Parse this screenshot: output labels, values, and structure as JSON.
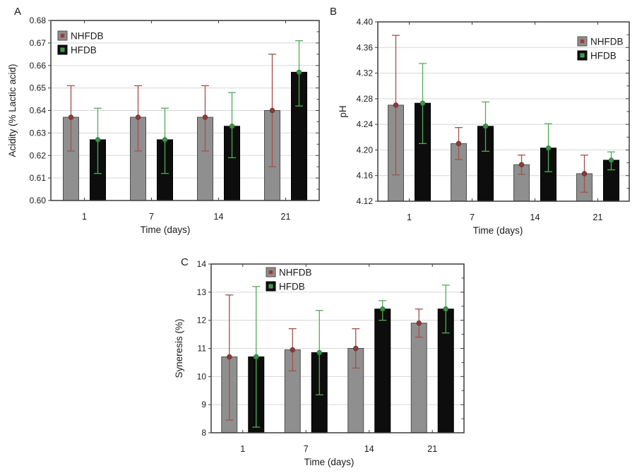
{
  "figure": {
    "background": "#ffffff",
    "text_color": "#1a1a1a",
    "grid_color": "#d7d7d7",
    "frame_color": "#3c3c3c"
  },
  "chart_data": {
    "type": "bar",
    "description": "Three-panel grouped bar chart with error bars comparing NHFDB and HFDB over storage time",
    "shared": {
      "xlabel": "Time (days)",
      "categories": [
        "1",
        "7",
        "14",
        "21"
      ],
      "legend_entries": [
        "NHFDB",
        "HFDB"
      ],
      "grid": "horizontal-major"
    },
    "panels": [
      {
        "id": "A",
        "label": "A",
        "ylabel": "Acidity (% Lactic acid)",
        "xlabel": "Time (days)",
        "ymin": 0.6,
        "ymax": 0.68,
        "ystep": 0.01,
        "yminor": 0.005,
        "ydecimals": 2,
        "legend_position": "top-left",
        "categories": [
          "1",
          "7",
          "14",
          "21"
        ],
        "series": [
          {
            "name": "NHFDB",
            "bar_color": "#8f8f8f",
            "bar_border": "#4f4f4f",
            "err_color": "#a3504a",
            "marker_fill": "#8e3b3a",
            "marker_stroke": "#742d2c",
            "values": [
              0.637,
              0.637,
              0.637,
              0.64
            ],
            "err_low": [
              0.622,
              0.622,
              0.622,
              0.615
            ],
            "err_high": [
              0.651,
              0.651,
              0.651,
              0.665
            ]
          },
          {
            "name": "HFDB",
            "bar_color": "#0d0d0d",
            "bar_border": "#000000",
            "err_color": "#52ab57",
            "marker_fill": "#3b9447",
            "marker_stroke": "#2e7a38",
            "values": [
              0.627,
              0.627,
              0.633,
              0.657
            ],
            "err_low": [
              0.612,
              0.612,
              0.619,
              0.642
            ],
            "err_high": [
              0.641,
              0.641,
              0.648,
              0.671
            ]
          }
        ]
      },
      {
        "id": "B",
        "label": "B",
        "ylabel": "pH",
        "xlabel": "Time (days)",
        "ymin": 4.12,
        "ymax": 4.4,
        "ystep": 0.04,
        "yminor": 0.02,
        "ydecimals": 2,
        "legend_position": "top-right",
        "categories": [
          "1",
          "7",
          "14",
          "21"
        ],
        "series": [
          {
            "name": "NHFDB",
            "bar_color": "#8f8f8f",
            "bar_border": "#4f4f4f",
            "err_color": "#a3504a",
            "marker_fill": "#8e3b3a",
            "marker_stroke": "#742d2c",
            "values": [
              4.27,
              4.21,
              4.177,
              4.163
            ],
            "err_low": [
              4.161,
              4.185,
              4.162,
              4.134
            ],
            "err_high": [
              4.379,
              4.235,
              4.192,
              4.192
            ]
          },
          {
            "name": "HFDB",
            "bar_color": "#0d0d0d",
            "bar_border": "#000000",
            "err_color": "#52ab57",
            "marker_fill": "#3b9447",
            "marker_stroke": "#2e7a38",
            "values": [
              4.273,
              4.237,
              4.203,
              4.184
            ],
            "err_low": [
              4.21,
              4.198,
              4.166,
              4.169
            ],
            "err_high": [
              4.335,
              4.275,
              4.241,
              4.197
            ]
          }
        ]
      },
      {
        "id": "C",
        "label": "C",
        "ylabel": "Syneresis (%)",
        "xlabel": "Time (days)",
        "ymin": 8,
        "ymax": 14,
        "ystep": 1,
        "yminor": 0.5,
        "ydecimals": 0,
        "legend_position": "top-center",
        "categories": [
          "1",
          "7",
          "14",
          "21"
        ],
        "series": [
          {
            "name": "NHFDB",
            "bar_color": "#8f8f8f",
            "bar_border": "#4f4f4f",
            "err_color": "#a3504a",
            "marker_fill": "#8e3b3a",
            "marker_stroke": "#742d2c",
            "values": [
              10.7,
              10.95,
              11.0,
              11.9
            ],
            "err_low": [
              8.45,
              10.2,
              10.3,
              11.4
            ],
            "err_high": [
              12.9,
              11.7,
              11.7,
              12.4
            ]
          },
          {
            "name": "HFDB",
            "bar_color": "#0d0d0d",
            "bar_border": "#000000",
            "err_color": "#52ab57",
            "marker_fill": "#3b9447",
            "marker_stroke": "#2e7a38",
            "values": [
              10.7,
              10.85,
              12.4,
              12.4
            ],
            "err_low": [
              8.2,
              9.35,
              12.0,
              11.55
            ],
            "err_high": [
              13.2,
              12.35,
              12.7,
              13.25
            ]
          }
        ]
      }
    ]
  }
}
